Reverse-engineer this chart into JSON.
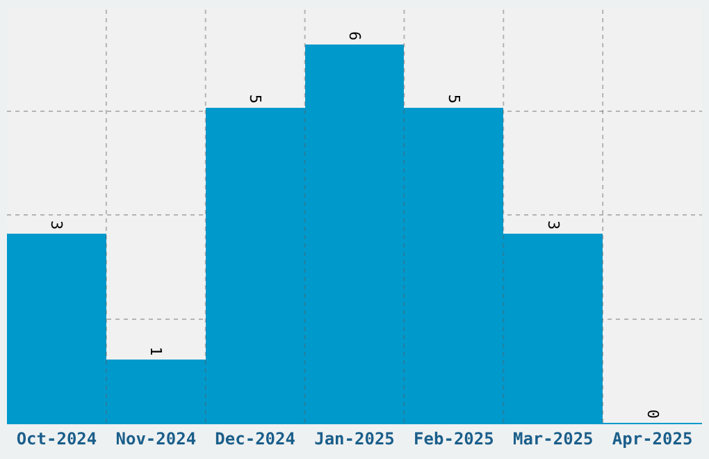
{
  "chart_data": {
    "type": "bar",
    "categories": [
      "Oct-2024",
      "Nov-2024",
      "Dec-2024",
      "Jan-2025",
      "Feb-2025",
      "Mar-2025",
      "Apr-2025"
    ],
    "values": [
      3,
      1,
      5,
      6,
      5,
      3,
      0
    ],
    "color": "#0099cc",
    "data_labels": true,
    "ylim": [
      0,
      6.6
    ],
    "yticks": [
      {
        "value": 0,
        "label": null
      },
      {
        "value": 1.65,
        "label": null
      },
      {
        "value": 3.3,
        "label": null
      },
      {
        "value": 4.95,
        "label": null
      }
    ],
    "tick_labels": "x",
    "grid": true
  }
}
